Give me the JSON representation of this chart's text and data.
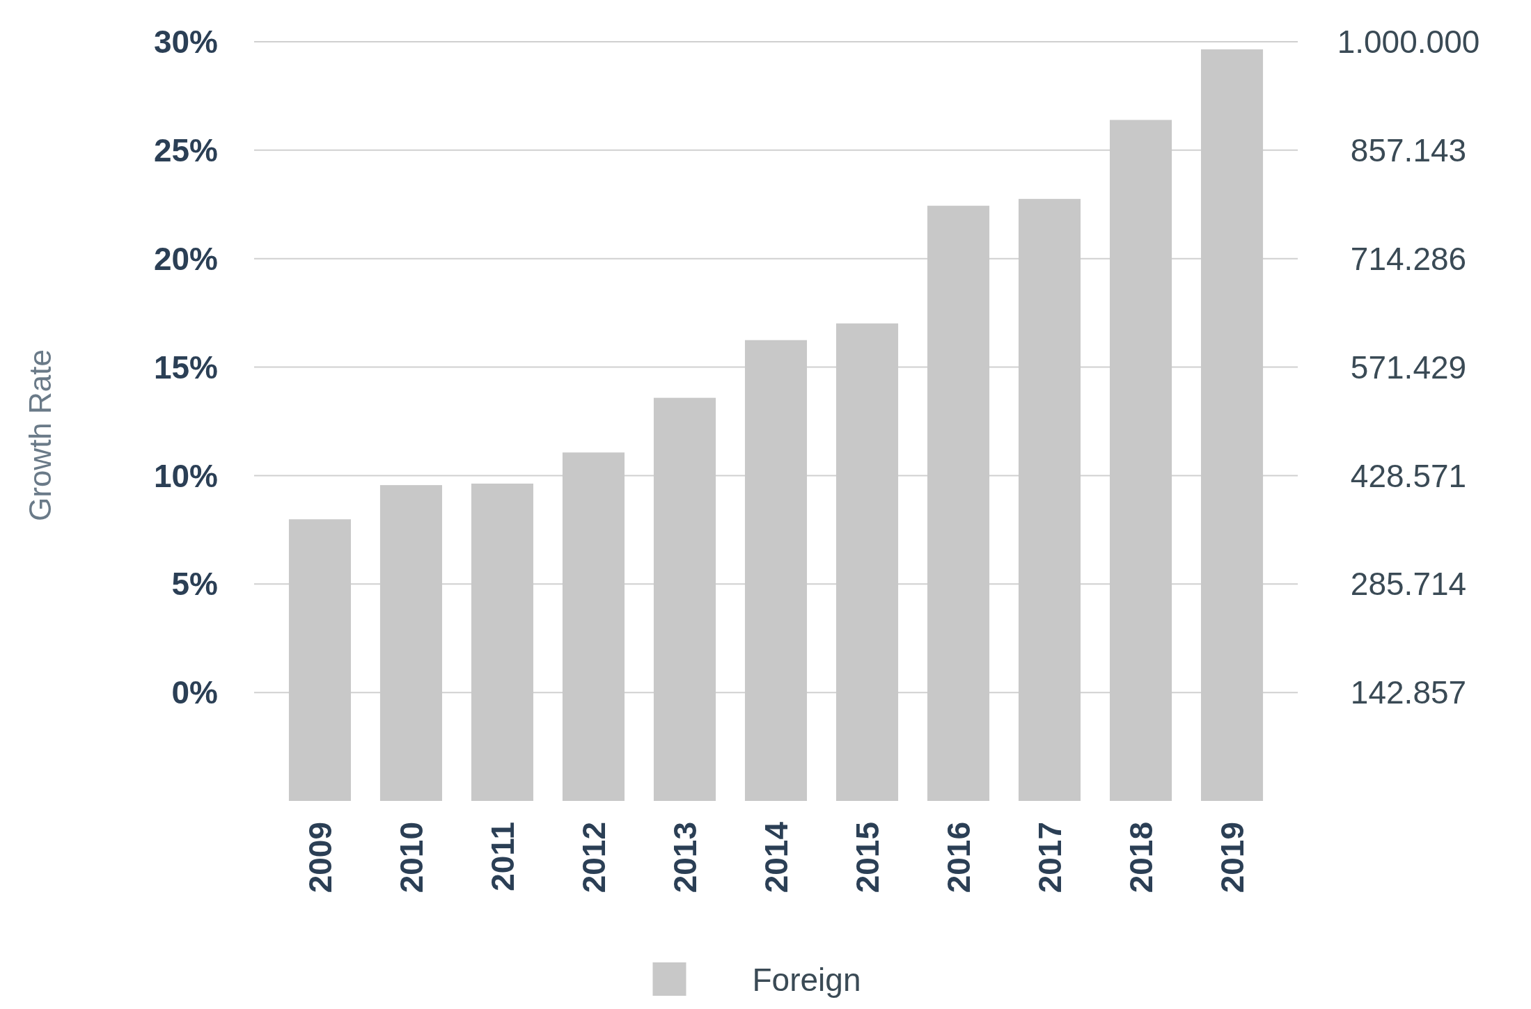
{
  "chart_data": {
    "type": "bar",
    "ylabel": "Growth Rate",
    "categories": [
      "2009",
      "2010",
      "2011",
      "2012",
      "2013",
      "2014",
      "2015",
      "2016",
      "2017",
      "2018",
      "2019"
    ],
    "series": [
      {
        "name": "Foreign",
        "color": "#c8c8c8",
        "axis": "y2",
        "values": [
          371000,
          416000,
          418000,
          459000,
          531000,
          607000,
          629000,
          784000,
          793000,
          897000,
          990000
        ]
      }
    ],
    "ylim": [
      -5,
      30
    ],
    "yticks": [
      {
        "value": 0,
        "label": "0%"
      },
      {
        "value": 5,
        "label": "5%"
      },
      {
        "value": 10,
        "label": "10%"
      },
      {
        "value": 15,
        "label": "15%"
      },
      {
        "value": 20,
        "label": "20%"
      },
      {
        "value": 25,
        "label": "25%"
      },
      {
        "value": 30,
        "label": "30%"
      }
    ],
    "y2lim": [
      0,
      1000000
    ],
    "y2ticks": [
      {
        "value": 142857,
        "label": "142.857"
      },
      {
        "value": 285714,
        "label": "285.714"
      },
      {
        "value": 428571,
        "label": "428.571"
      },
      {
        "value": 571429,
        "label": "571.429"
      },
      {
        "value": 714286,
        "label": "714.286"
      },
      {
        "value": 857143,
        "label": "857.143"
      },
      {
        "value": 1000000,
        "label": "1.000.000"
      }
    ],
    "grid": "y",
    "legend": "bottom"
  }
}
